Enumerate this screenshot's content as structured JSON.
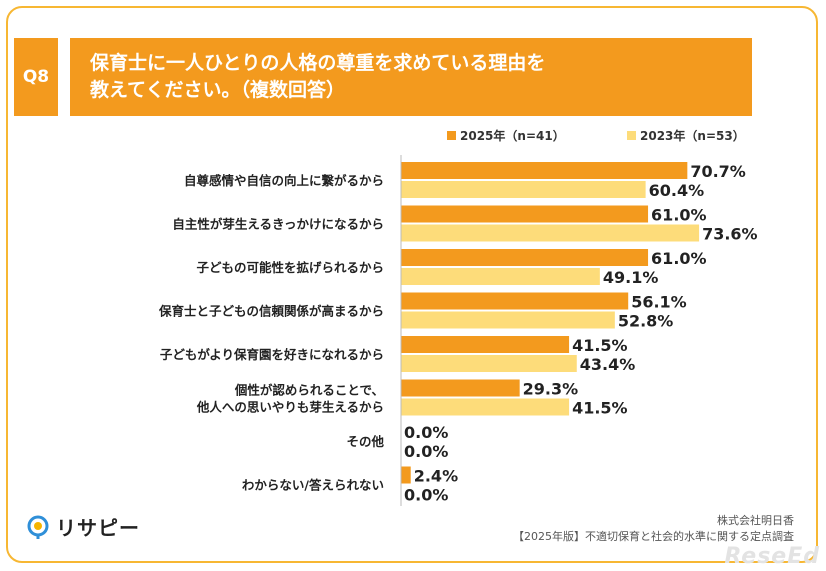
{
  "header": {
    "badge": "Q8",
    "title_line1": "保育士に一人ひとりの人格の尊重を求めている理由を",
    "title_line2": "教えてください。（複数回答）"
  },
  "chart_data": {
    "type": "bar",
    "orientation": "horizontal",
    "categories": [
      "自尊感情や自信の向上に繋がるから",
      "自主性が芽生えるきっかけになるから",
      "子どもの可能性を拡げられるから",
      "保育士と子どもの信頼関係が高まるから",
      "子どもがより保育園を好きになれるから",
      "個性が認められることで、\n他人への思いやりも芽生えるから",
      "その他",
      "わからない/答えられない"
    ],
    "series": [
      {
        "name": "2025年（n=41）",
        "color": "#f39a1e",
        "values": [
          70.7,
          61.0,
          61.0,
          56.1,
          41.5,
          29.3,
          0.0,
          2.4
        ],
        "labels": [
          "70.7%",
          "61.0%",
          "61.0%",
          "56.1%",
          "41.5%",
          "29.3%",
          "0.0%",
          "2.4%"
        ]
      },
      {
        "name": "2023年（n=53）",
        "color": "#fddc7a",
        "values": [
          60.4,
          73.6,
          49.1,
          52.8,
          43.4,
          41.5,
          0.0,
          0.0
        ],
        "labels": [
          "60.4%",
          "73.6%",
          "49.1%",
          "52.8%",
          "43.4%",
          "41.5%",
          "0.0%",
          "0.0%"
        ]
      }
    ],
    "xlim": [
      0,
      100
    ],
    "legend_position": "top-right",
    "grid": false
  },
  "footer": {
    "logo_text": "リサピー",
    "credit_line1": "株式会社明日香",
    "credit_line2": "【2025年版】不適切保育と社会的水準に関する定点調査",
    "watermark": "ReseEd"
  }
}
